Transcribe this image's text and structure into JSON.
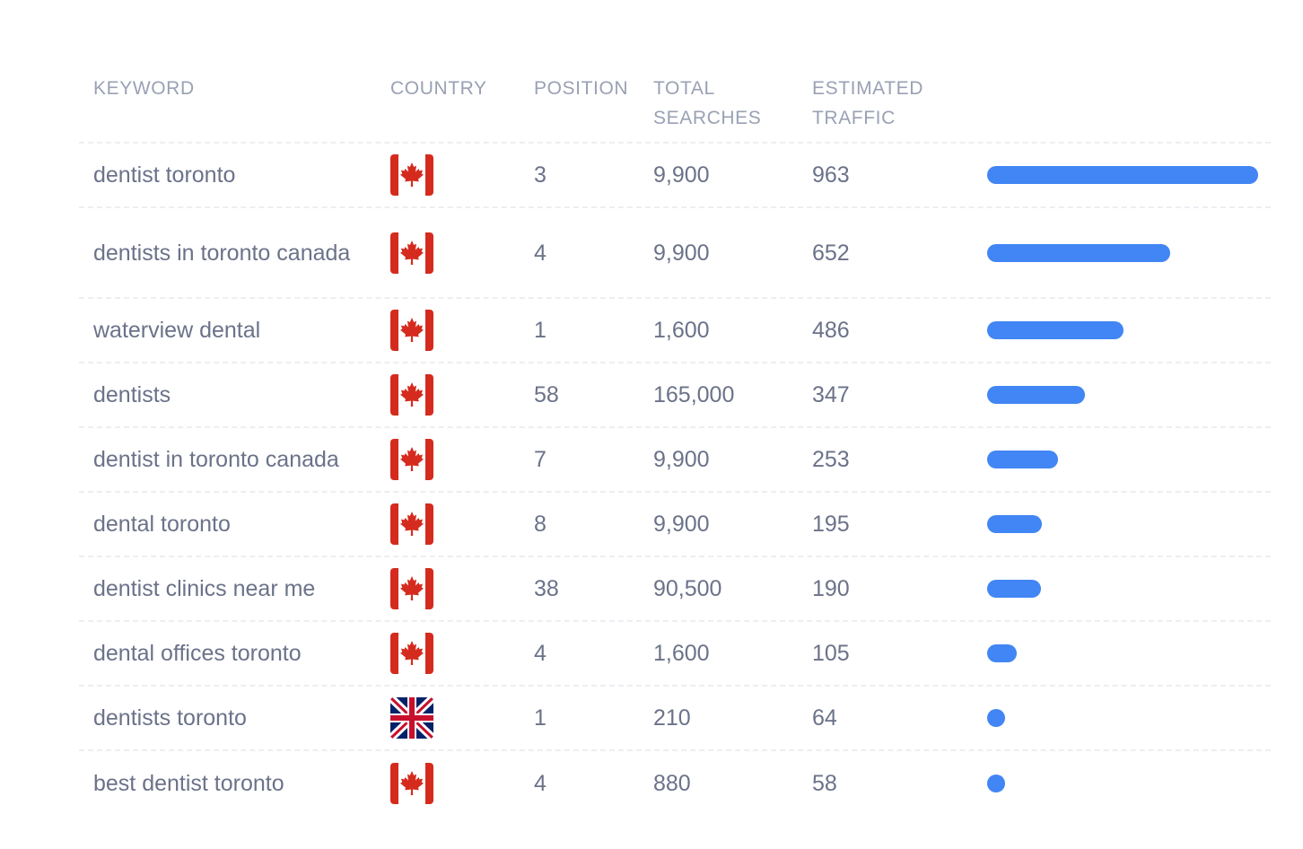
{
  "headers": {
    "keyword": "KEYWORD",
    "country": "COUNTRY",
    "position": "POSITION",
    "total_searches_line1": "TOTAL",
    "total_searches_line2": "SEARCHES",
    "estimated_traffic_line1": "ESTIMATED",
    "estimated_traffic_line2": "TRAFFIC"
  },
  "colors": {
    "bar": "#4186f4",
    "canada_red": "#d52b1e",
    "uk_blue": "#012169",
    "uk_red": "#c8102e"
  },
  "rows": [
    {
      "keyword": "dentist toronto",
      "country_icon": "canada-flag-icon",
      "position": "3",
      "total_searches": "9,900",
      "estimated_traffic": "963",
      "traffic_value": 963
    },
    {
      "keyword": "dentists in toronto canada",
      "country_icon": "canada-flag-icon",
      "position": "4",
      "total_searches": "9,900",
      "estimated_traffic": "652",
      "traffic_value": 652
    },
    {
      "keyword": "waterview dental",
      "country_icon": "canada-flag-icon",
      "position": "1",
      "total_searches": "1,600",
      "estimated_traffic": "486",
      "traffic_value": 486
    },
    {
      "keyword": "dentists",
      "country_icon": "canada-flag-icon",
      "position": "58",
      "total_searches": "165,000",
      "estimated_traffic": "347",
      "traffic_value": 347
    },
    {
      "keyword": "dentist in toronto canada",
      "country_icon": "canada-flag-icon",
      "position": "7",
      "total_searches": "9,900",
      "estimated_traffic": "253",
      "traffic_value": 253
    },
    {
      "keyword": "dental toronto",
      "country_icon": "canada-flag-icon",
      "position": "8",
      "total_searches": "9,900",
      "estimated_traffic": "195",
      "traffic_value": 195
    },
    {
      "keyword": "dentist clinics near me",
      "country_icon": "canada-flag-icon",
      "position": "38",
      "total_searches": "90,500",
      "estimated_traffic": "190",
      "traffic_value": 190
    },
    {
      "keyword": "dental offices toronto",
      "country_icon": "canada-flag-icon",
      "position": "4",
      "total_searches": "1,600",
      "estimated_traffic": "105",
      "traffic_value": 105
    },
    {
      "keyword": "dentists toronto",
      "country_icon": "uk-flag-icon",
      "position": "1",
      "total_searches": "210",
      "estimated_traffic": "64",
      "traffic_value": 64
    },
    {
      "keyword": "best dentist toronto",
      "country_icon": "canada-flag-icon",
      "position": "4",
      "total_searches": "880",
      "estimated_traffic": "58",
      "traffic_value": 58
    }
  ],
  "traffic_bar_max": 963
}
